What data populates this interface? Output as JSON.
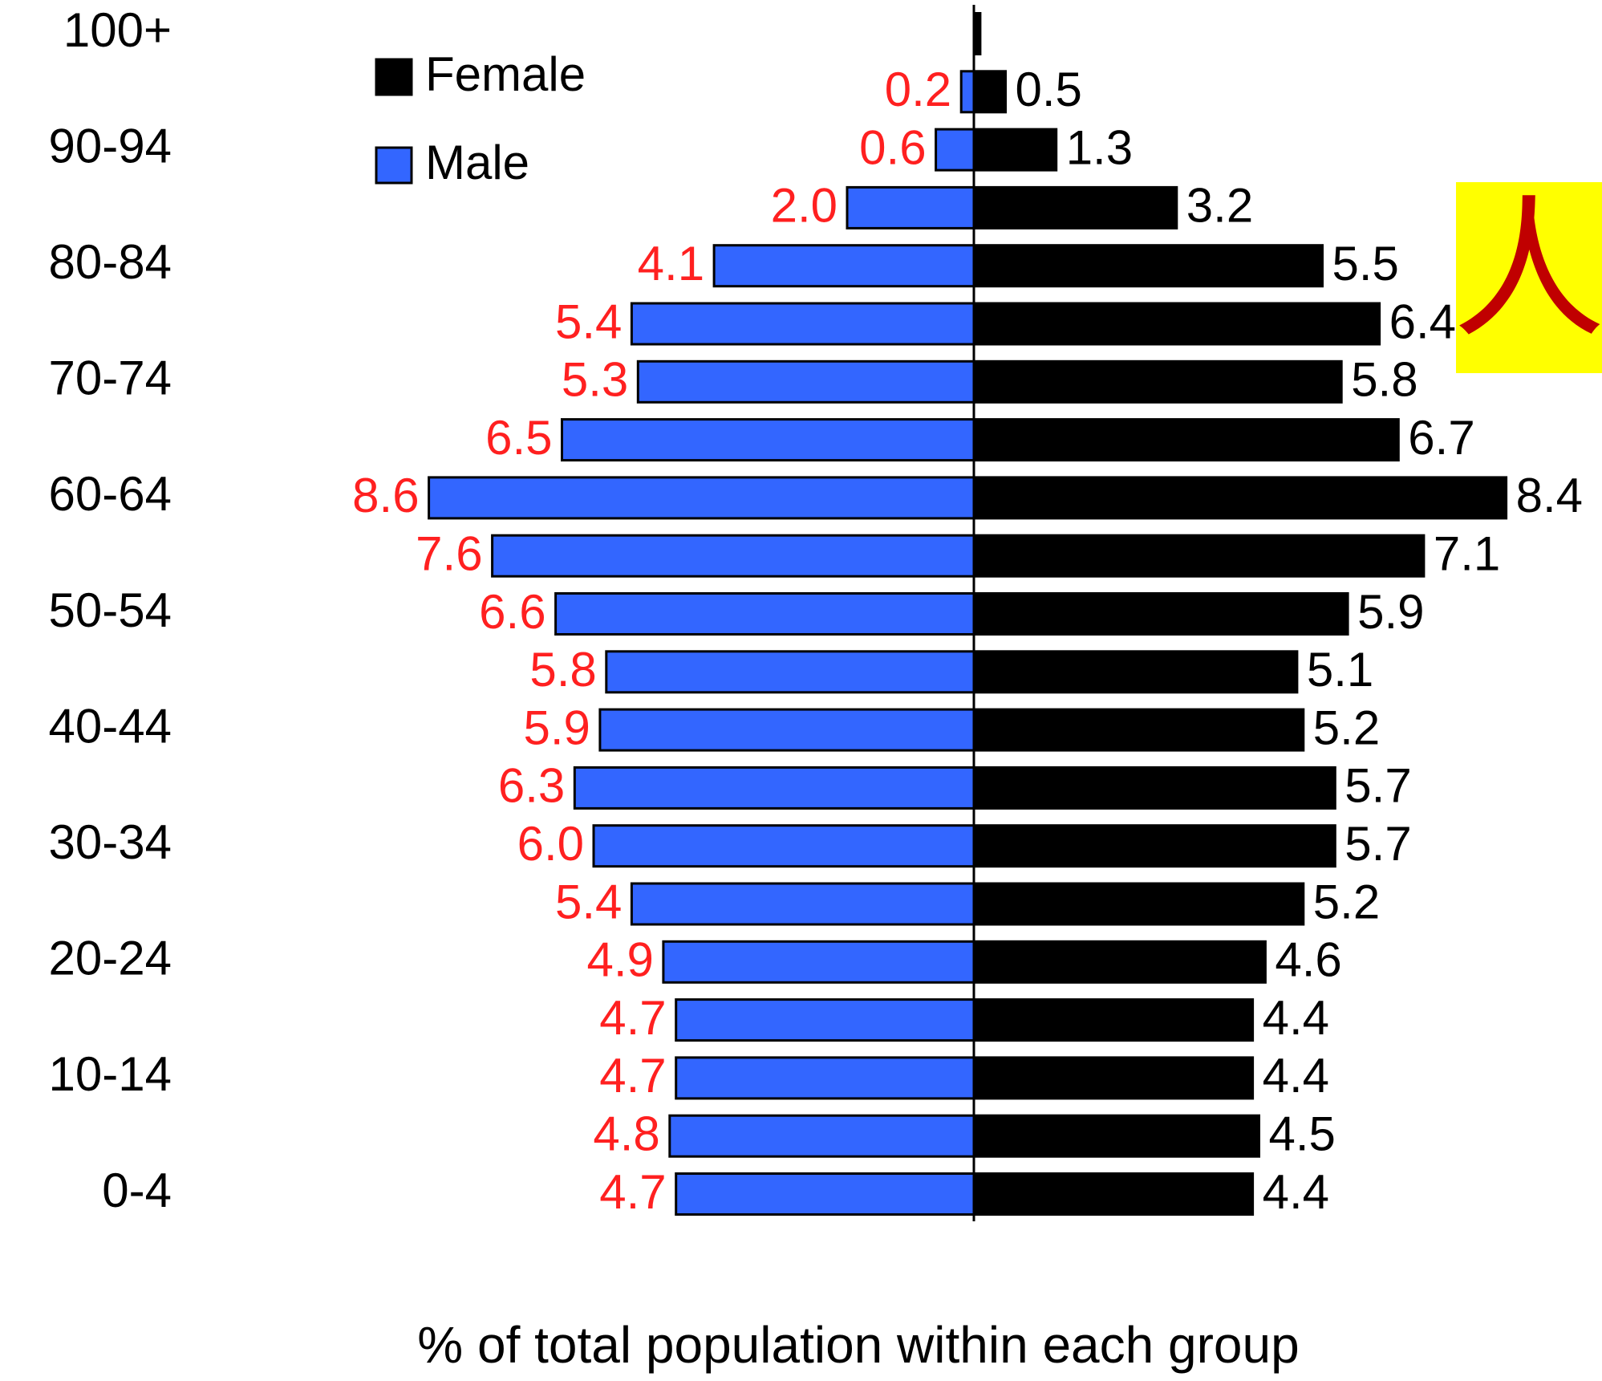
{
  "chart_data": {
    "type": "pyramid",
    "x_label": "% of total population within each group",
    "annotation": "人",
    "categories": [
      "100+",
      null,
      "90-94",
      null,
      "80-84",
      null,
      "70-74",
      null,
      "60-64",
      null,
      "50-54",
      null,
      "40-44",
      null,
      "30-34",
      null,
      "20-24",
      null,
      "10-14",
      null,
      "0-4"
    ],
    "series": [
      {
        "name": "Female",
        "color": "#000000",
        "side": "right",
        "values": [
          0.1,
          0.5,
          1.3,
          3.2,
          5.5,
          6.4,
          5.8,
          6.7,
          8.4,
          7.1,
          5.9,
          5.1,
          5.2,
          5.7,
          5.7,
          5.2,
          4.6,
          4.4,
          4.4,
          4.5,
          4.4
        ],
        "value_labels": [
          null,
          "0.5",
          "1.3",
          "3.2",
          "5.5",
          "6.4",
          "5.8",
          "6.7",
          "8.4",
          "7.1",
          "5.9",
          "5.1",
          "5.2",
          "5.7",
          "5.7",
          "5.2",
          "4.6",
          "4.4",
          "4.4",
          "4.5",
          "4.4"
        ]
      },
      {
        "name": "Male",
        "color": "#3366ff",
        "label_color": "#ff2020",
        "side": "left",
        "values": [
          0,
          0.2,
          0.6,
          2.0,
          4.1,
          5.4,
          5.3,
          6.5,
          8.6,
          7.6,
          6.6,
          5.8,
          5.9,
          6.3,
          6.0,
          5.4,
          4.9,
          4.7,
          4.7,
          4.8,
          4.7
        ],
        "value_labels": [
          null,
          "0.2",
          "0.6",
          "2.0",
          "4.1",
          "5.4",
          "5.3",
          "6.5",
          "8.6",
          "7.6",
          "6.6",
          "5.8",
          "5.9",
          "6.3",
          "6.0",
          "5.4",
          "4.9",
          "4.7",
          "4.7",
          "4.8",
          "4.7"
        ]
      }
    ],
    "xlim": [
      -9,
      9
    ]
  }
}
